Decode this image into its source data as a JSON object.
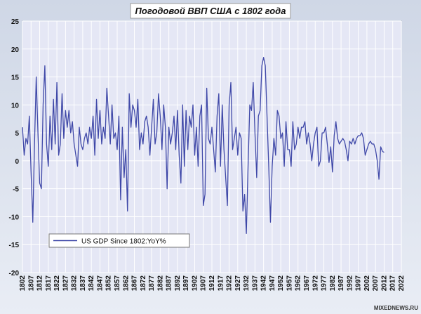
{
  "chart_data": {
    "type": "line",
    "title": "Погодовой ВВП США с 1802 года",
    "watermark": "MIXEDNEWS.RU",
    "x": [
      1802,
      1803,
      1804,
      1805,
      1806,
      1807,
      1808,
      1809,
      1810,
      1811,
      1812,
      1813,
      1814,
      1815,
      1816,
      1817,
      1818,
      1819,
      1820,
      1821,
      1822,
      1823,
      1824,
      1825,
      1826,
      1827,
      1828,
      1829,
      1830,
      1831,
      1832,
      1833,
      1834,
      1835,
      1836,
      1837,
      1838,
      1839,
      1840,
      1841,
      1842,
      1843,
      1844,
      1845,
      1846,
      1847,
      1848,
      1849,
      1850,
      1851,
      1852,
      1853,
      1854,
      1855,
      1856,
      1857,
      1858,
      1859,
      1860,
      1861,
      1862,
      1863,
      1864,
      1865,
      1866,
      1867,
      1868,
      1869,
      1870,
      1871,
      1872,
      1873,
      1874,
      1875,
      1876,
      1877,
      1878,
      1879,
      1880,
      1881,
      1882,
      1883,
      1884,
      1885,
      1886,
      1887,
      1888,
      1889,
      1890,
      1891,
      1892,
      1893,
      1894,
      1895,
      1896,
      1897,
      1898,
      1899,
      1900,
      1901,
      1902,
      1903,
      1904,
      1905,
      1906,
      1907,
      1908,
      1909,
      1910,
      1911,
      1912,
      1913,
      1914,
      1915,
      1916,
      1917,
      1918,
      1919,
      1920,
      1921,
      1922,
      1923,
      1924,
      1925,
      1926,
      1927,
      1928,
      1929,
      1930,
      1931,
      1932,
      1933,
      1934,
      1935,
      1936,
      1937,
      1938,
      1939,
      1940,
      1941,
      1942,
      1943,
      1944,
      1945,
      1946,
      1947,
      1948,
      1949,
      1950,
      1951,
      1952,
      1953,
      1954,
      1955,
      1956,
      1957,
      1958,
      1959,
      1960,
      1961,
      1962,
      1963,
      1964,
      1965,
      1966,
      1967,
      1968,
      1969,
      1970,
      1971,
      1972,
      1973,
      1974,
      1975,
      1976,
      1977,
      1978,
      1979,
      1980,
      1981,
      1982,
      1983,
      1984,
      1985,
      1986,
      1987,
      1988,
      1989,
      1990,
      1991,
      1992,
      1993,
      1994,
      1995,
      1996,
      1997,
      1998,
      1999,
      2000,
      2001,
      2002,
      2003,
      2004,
      2005,
      2006,
      2007,
      2008,
      2009,
      2010,
      2011,
      2012
    ],
    "series": [
      {
        "name": "US GDP Since 1802:YoY%",
        "color": "#3f48a8",
        "values": [
          6,
          1,
          4,
          3,
          8,
          -2,
          -11,
          3,
          15,
          5,
          -4,
          -5,
          10,
          17,
          3,
          -1,
          8,
          2,
          11,
          3,
          14,
          1,
          3,
          12,
          4,
          9,
          6,
          9,
          5,
          7,
          3,
          1,
          -1,
          6,
          3,
          2,
          4,
          5,
          3,
          6,
          4,
          8,
          1,
          11,
          4,
          9,
          3,
          6,
          4,
          13,
          8,
          3,
          10,
          4,
          5,
          2,
          8,
          -7,
          6,
          -3,
          2,
          -9,
          12,
          6,
          10,
          9,
          6,
          11,
          2,
          5,
          3,
          7,
          8,
          6,
          1,
          6,
          11,
          3,
          5,
          12,
          8,
          2,
          10,
          6,
          -5,
          6,
          3,
          5,
          8,
          2,
          9,
          1,
          -4,
          10,
          -1,
          9,
          2,
          8,
          6,
          10,
          1,
          6,
          -1,
          8,
          10,
          -8,
          -6,
          13,
          4,
          3,
          6,
          2,
          -2,
          8,
          12,
          -1,
          10,
          2,
          -3,
          -8,
          10,
          14,
          2,
          4,
          6,
          1,
          5,
          4,
          -9,
          -6,
          -13,
          -1,
          10,
          9,
          14,
          5,
          -3,
          8,
          9,
          17,
          18.5,
          17,
          8,
          -1,
          -11,
          -1,
          4,
          1,
          9,
          8,
          4,
          5,
          -1,
          7,
          2,
          2,
          -1,
          7,
          2,
          3,
          6,
          4,
          6,
          6,
          7,
          3,
          5,
          3,
          0,
          3,
          5,
          6,
          -1,
          0,
          5,
          5,
          6,
          3,
          -0.3,
          2.5,
          -2,
          4.5,
          7,
          4,
          3,
          3.5,
          4,
          3.5,
          2,
          0,
          3.5,
          3,
          4,
          3,
          4,
          4.5,
          4.5,
          5,
          4,
          1,
          2,
          3,
          3.5,
          3,
          3,
          2,
          0,
          -3.3,
          2.5,
          1.7,
          1.5
        ]
      }
    ],
    "xlim": [
      1802,
      2022
    ],
    "xticks": [
      1802,
      1807,
      1812,
      1817,
      1822,
      1827,
      1832,
      1837,
      1842,
      1847,
      1852,
      1857,
      1862,
      1867,
      1872,
      1877,
      1882,
      1887,
      1892,
      1897,
      1902,
      1907,
      1912,
      1917,
      1922,
      1927,
      1932,
      1937,
      1942,
      1947,
      1952,
      1957,
      1962,
      1967,
      1972,
      1977,
      1982,
      1987,
      1992,
      1997,
      2002,
      2007,
      2012,
      2017,
      2022
    ],
    "ylim": [
      -20,
      25
    ],
    "yticks": [
      -20,
      -15,
      -10,
      -5,
      0,
      5,
      10,
      15,
      20,
      25
    ],
    "grid": true
  }
}
